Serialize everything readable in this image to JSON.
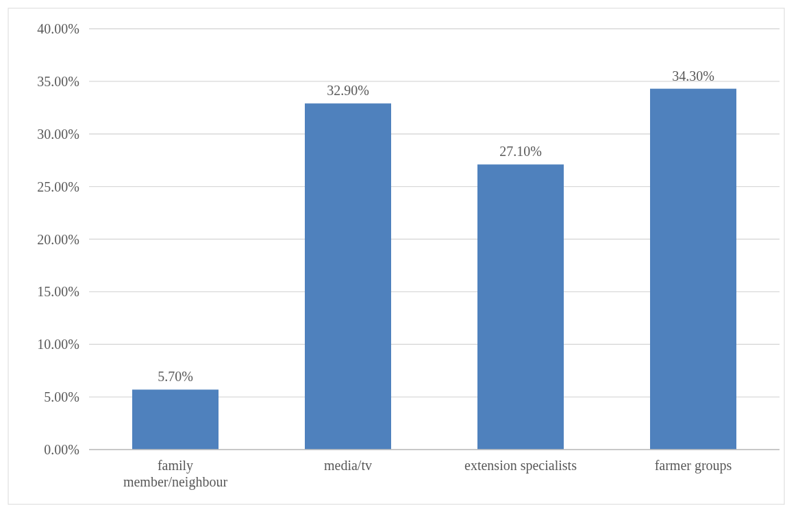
{
  "chart_data": {
    "type": "bar",
    "categories": [
      "family member/neighbour",
      "media/tv",
      "extension specialists",
      "farmer groups"
    ],
    "values": [
      5.7,
      32.9,
      27.1,
      34.3
    ],
    "color": "#4f81bd",
    "value_labels": [
      "5.70%",
      "32.90%",
      "27.10%",
      "34.30%"
    ],
    "ylim": [
      0,
      40
    ],
    "yticks": [
      {
        "value": 0,
        "label": "0.00%"
      },
      {
        "value": 5,
        "label": "5.00%"
      },
      {
        "value": 10,
        "label": "10.00%"
      },
      {
        "value": 15,
        "label": "15.00%"
      },
      {
        "value": 20,
        "label": "20.00%"
      },
      {
        "value": 25,
        "label": "25.00%"
      },
      {
        "value": 30,
        "label": "30.00%"
      },
      {
        "value": 35,
        "label": "35.00%"
      },
      {
        "value": 40,
        "label": "40.00%"
      }
    ],
    "grid": "y"
  }
}
